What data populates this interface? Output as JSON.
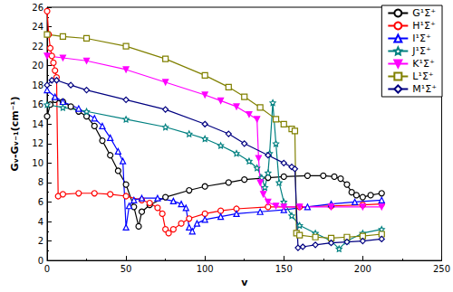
{
  "chart_data": {
    "type": "line",
    "xlabel": "v",
    "ylabel": "Gᵥ-Gᵥ₋₁(cm⁻¹)",
    "xlim": [
      0,
      250
    ],
    "xticks": [
      0,
      50,
      100,
      150,
      200,
      250
    ],
    "ylim": [
      0,
      26
    ],
    "yticks": [
      0,
      2,
      4,
      6,
      8,
      10,
      12,
      14,
      16,
      18,
      20,
      22,
      24,
      26
    ],
    "grid": false,
    "legend": "upper right",
    "series": [
      {
        "name": "G¹Σ⁺",
        "color": "#000000",
        "marker": "half_circle",
        "x": [
          0,
          2,
          5,
          10,
          15,
          20,
          25,
          30,
          35,
          40,
          45,
          50,
          55,
          58,
          60,
          65,
          75,
          90,
          100,
          115,
          125,
          140,
          150,
          165,
          175,
          182,
          186,
          190,
          193,
          196,
          200,
          205,
          212
        ],
        "values": [
          14.8,
          16,
          16.5,
          16.3,
          15.8,
          15.3,
          14.8,
          13.8,
          12.3,
          10.8,
          9.2,
          7.8,
          5.5,
          3.5,
          5.0,
          5.7,
          6.5,
          7.2,
          7.6,
          8.0,
          8.3,
          8.5,
          8.6,
          8.7,
          8.7,
          8.6,
          8.4,
          7.8,
          7.0,
          6.7,
          6.5,
          6.7,
          6.9
        ]
      },
      {
        "name": "H¹Σ⁺",
        "color": "#ff0000",
        "marker": "half_circle",
        "x": [
          0,
          1,
          2,
          3,
          4,
          5,
          6,
          7,
          10,
          20,
          30,
          40,
          50,
          60,
          65,
          70,
          73,
          75,
          77,
          80,
          85,
          90,
          100,
          110,
          120,
          140,
          160,
          180,
          200,
          212
        ],
        "values": [
          25.6,
          23.2,
          21.8,
          21,
          20.3,
          19.5,
          18.8,
          6.6,
          6.8,
          6.9,
          6.9,
          6.8,
          6.6,
          6.2,
          5.9,
          5.4,
          4.8,
          3.2,
          2.8,
          3.2,
          3.8,
          4.3,
          4.8,
          5.1,
          5.3,
          5.5,
          5.5,
          5.6,
          5.7,
          5.8
        ]
      },
      {
        "name": "I¹Σ⁺",
        "color": "#0000ff",
        "marker": "triangle_open",
        "x": [
          0,
          5,
          10,
          20,
          30,
          35,
          40,
          45,
          48,
          50,
          52,
          55,
          60,
          70,
          80,
          85,
          88,
          90,
          92,
          95,
          100,
          110,
          120,
          135,
          150,
          165,
          180,
          195,
          212
        ],
        "values": [
          17.5,
          16.8,
          16.3,
          15.6,
          14.6,
          13.8,
          12.6,
          11.2,
          10.2,
          3.4,
          5.6,
          6.2,
          6.4,
          6.4,
          6.1,
          5.8,
          5.4,
          3.4,
          3.0,
          3.8,
          4.2,
          4.5,
          4.8,
          5.0,
          5.2,
          5.5,
          5.8,
          6.0,
          6.2
        ]
      },
      {
        "name": "J¹Σ⁺",
        "color": "#008080",
        "marker": "star_open",
        "x": [
          0,
          10,
          25,
          50,
          75,
          90,
          100,
          110,
          120,
          128,
          133,
          136,
          138,
          140,
          141,
          143,
          145,
          147,
          150,
          155,
          160,
          170,
          180,
          185,
          190,
          200,
          212
        ],
        "values": [
          16.0,
          15.7,
          15.3,
          14.5,
          13.7,
          13.0,
          12.5,
          11.8,
          11.0,
          10.2,
          9.5,
          8.5,
          7.5,
          9.0,
          11.0,
          16.2,
          12.0,
          8.0,
          6.0,
          4.6,
          3.6,
          2.8,
          2.0,
          1.2,
          2.0,
          2.8,
          3.2
        ]
      },
      {
        "name": "K¹Σ⁺",
        "color": "#ff00ff",
        "marker": "triangle_down",
        "x": [
          0,
          10,
          25,
          50,
          75,
          100,
          110,
          120,
          128,
          133,
          134,
          135,
          137,
          140,
          145,
          150,
          160,
          180,
          200,
          212
        ],
        "values": [
          21.0,
          20.8,
          20.5,
          19.6,
          18.3,
          17.0,
          16.4,
          15.8,
          15.0,
          14.5,
          10.5,
          8.0,
          6.8,
          6.0,
          5.6,
          5.5,
          5.5,
          5.5,
          5.5,
          5.5
        ]
      },
      {
        "name": "L¹Σ⁺",
        "color": "#808000",
        "marker": "half_square",
        "x": [
          0,
          10,
          25,
          50,
          75,
          100,
          115,
          125,
          135,
          145,
          150,
          155,
          157,
          158,
          160,
          170,
          180,
          190,
          200,
          212
        ],
        "values": [
          23.2,
          23.0,
          22.8,
          22.0,
          20.7,
          19.0,
          17.8,
          16.8,
          15.7,
          14.5,
          14.0,
          13.5,
          13.3,
          2.8,
          2.6,
          2.4,
          2.3,
          2.4,
          2.5,
          2.7
        ]
      },
      {
        "name": "M¹Σ⁺",
        "color": "#000080",
        "marker": "half_diamond",
        "x": [
          0,
          3,
          6,
          15,
          25,
          50,
          75,
          100,
          115,
          125,
          140,
          150,
          155,
          157,
          159,
          162,
          170,
          180,
          190,
          200,
          212
        ],
        "values": [
          18.0,
          18.5,
          18.5,
          18.0,
          17.5,
          16.5,
          15.5,
          14.0,
          13.0,
          12.0,
          10.8,
          10.0,
          9.6,
          9.4,
          1.3,
          1.4,
          1.6,
          1.8,
          1.9,
          2.0,
          2.2
        ]
      }
    ]
  }
}
